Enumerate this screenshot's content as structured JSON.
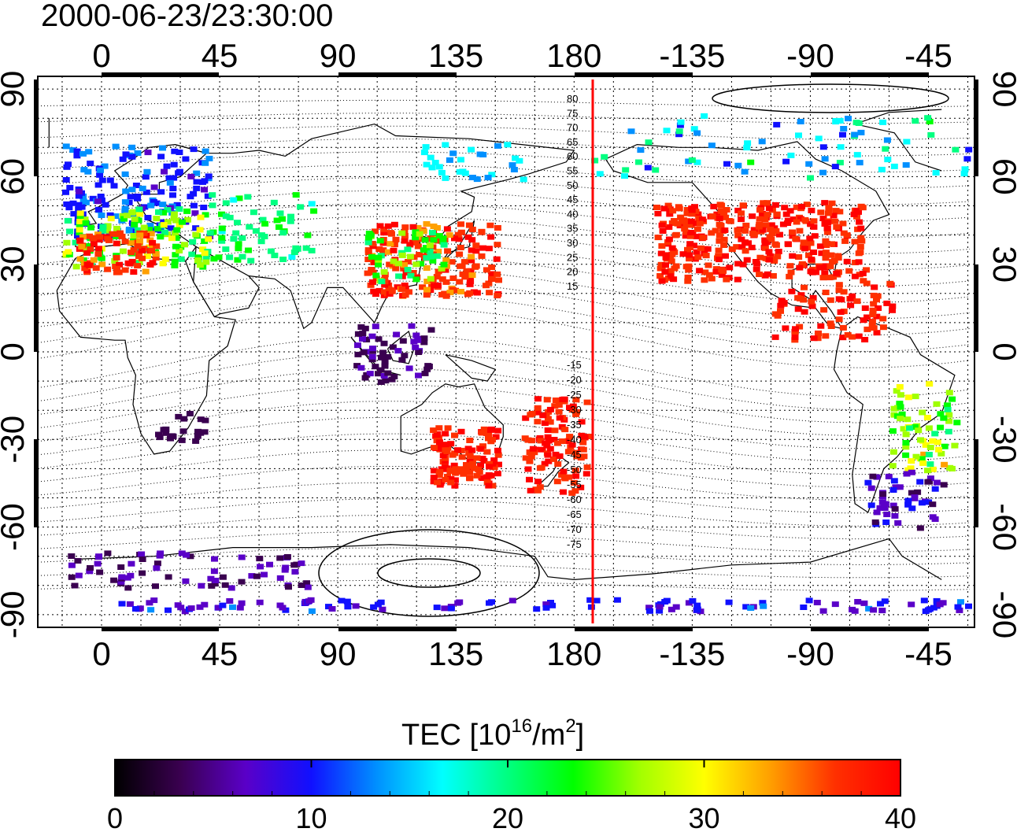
{
  "timestamp": "2000-06-23/23:30:00",
  "map": {
    "lon_ticks": [
      "0",
      "45",
      "90",
      "135",
      "180",
      "-135",
      "-90",
      "-45"
    ],
    "lat_ticks": [
      "90",
      "60",
      "30",
      "0",
      "-30",
      "-60",
      "-90"
    ],
    "contour_labels_north": [
      "80",
      "75",
      "70",
      "65",
      "60",
      "55",
      "50",
      "45",
      "40",
      "35",
      "30",
      "25",
      "20",
      "15"
    ],
    "contour_labels_south": [
      "-15",
      "-20",
      "-25",
      "-30",
      "-35",
      "-40",
      "-45",
      "-50",
      "-55",
      "-60",
      "-65",
      "-70",
      "-75"
    ],
    "terminator_line": "red vertical line near 190°E",
    "colormap": [
      "#000000",
      "#3a0050",
      "#5a00c8",
      "#1010ff",
      "#0090ff",
      "#00ffff",
      "#00ff80",
      "#00ff00",
      "#a0ff00",
      "#ffff00",
      "#ffa000",
      "#ff3000",
      "#ff0000"
    ]
  },
  "colorbar": {
    "title_prefix": "TEC  [10",
    "title_sup1": "16",
    "title_mid": "/m",
    "title_sup2": "2",
    "title_suffix": "]",
    "ticks": [
      "0",
      "10",
      "20",
      "30",
      "40"
    ],
    "range": [
      0,
      40
    ]
  }
}
